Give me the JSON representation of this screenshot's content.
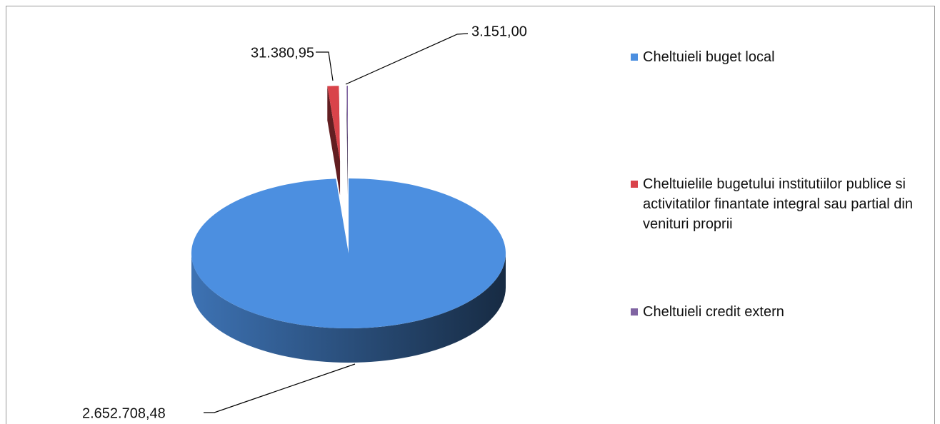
{
  "chart_data": {
    "type": "pie3d",
    "categories": [
      "Cheltuieli buget local",
      "Cheltuielile bugetului institutiilor publice si activitatilor finantate integral sau partial din venituri proprii",
      "Cheltuieli credit extern"
    ],
    "values": [
      2652708.48,
      31380.95,
      3151.0
    ],
    "value_labels": [
      "2.652.708,48",
      "31.380,95",
      "3.151,00"
    ],
    "colors": [
      "#4c8fe0",
      "#d9434a",
      "#8064a2"
    ],
    "exploded": [
      false,
      true,
      true
    ],
    "legend": "right"
  }
}
